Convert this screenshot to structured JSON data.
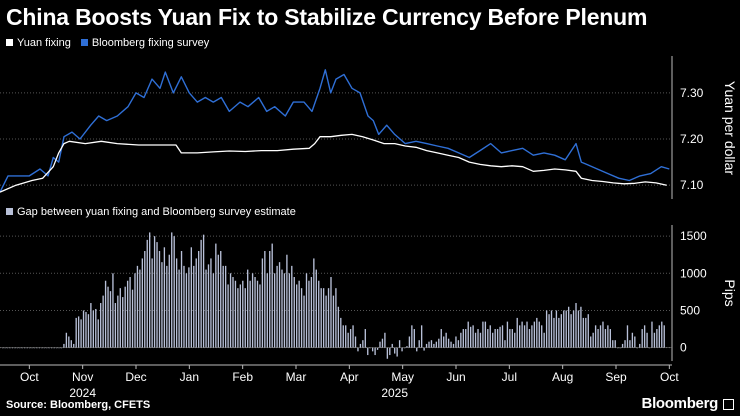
{
  "title": "China Boosts Yuan Fix to Stabilize Currency Before Plenum",
  "legend": {
    "fixing": {
      "label": "Yuan fixing",
      "color": "#ffffff"
    },
    "survey": {
      "label": "Bloomberg fixing survey",
      "color": "#2f6fd6"
    }
  },
  "gap_legend": {
    "label": "Gap between yuan fixing and Bloomberg survey estimate",
    "color": "#b8c0d8"
  },
  "source": "Source: Bloomberg, CFETS",
  "brand": "Bloomberg",
  "chart_data": [
    {
      "type": "line",
      "title": "China Boosts Yuan Fix to Stabilize Currency Before Plenum",
      "ylabel": "Yuan per dollar",
      "ylim": [
        7.07,
        7.38
      ],
      "yticks": [
        "7.30",
        "7.20",
        "7.10"
      ],
      "ytick_values": [
        7.3,
        7.2,
        7.1
      ],
      "xlim": [
        0,
        12.6
      ],
      "month_labels": [
        "Oct",
        "Nov",
        "Dec",
        "Jan",
        "Feb",
        "Mar",
        "Apr",
        "May",
        "Jun",
        "Jul",
        "Aug",
        "Sep",
        "Oct"
      ],
      "year_labels": [
        "2024",
        "2025"
      ],
      "series": [
        {
          "name": "Yuan fixing",
          "points": [
            [
              0,
              7.085
            ],
            [
              0.3,
              7.1
            ],
            [
              0.6,
              7.11
            ],
            [
              0.8,
              7.115
            ],
            [
              1.0,
              7.14
            ],
            [
              1.1,
              7.17
            ],
            [
              1.2,
              7.19
            ],
            [
              1.3,
              7.195
            ],
            [
              1.6,
              7.19
            ],
            [
              1.9,
              7.195
            ],
            [
              2.2,
              7.19
            ],
            [
              2.6,
              7.187
            ],
            [
              3.0,
              7.187
            ],
            [
              3.3,
              7.187
            ],
            [
              3.4,
              7.17
            ],
            [
              3.7,
              7.17
            ],
            [
              4.0,
              7.172
            ],
            [
              4.3,
              7.174
            ],
            [
              4.6,
              7.173
            ],
            [
              4.9,
              7.175
            ],
            [
              5.2,
              7.175
            ],
            [
              5.5,
              7.178
            ],
            [
              5.8,
              7.18
            ],
            [
              5.9,
              7.19
            ],
            [
              6.0,
              7.205
            ],
            [
              6.2,
              7.205
            ],
            [
              6.4,
              7.208
            ],
            [
              6.6,
              7.21
            ],
            [
              6.8,
              7.205
            ],
            [
              7.0,
              7.198
            ],
            [
              7.2,
              7.19
            ],
            [
              7.4,
              7.19
            ],
            [
              7.6,
              7.185
            ],
            [
              7.8,
              7.182
            ],
            [
              8.0,
              7.175
            ],
            [
              8.2,
              7.17
            ],
            [
              8.4,
              7.165
            ],
            [
              8.6,
              7.16
            ],
            [
              8.8,
              7.15
            ],
            [
              9.0,
              7.145
            ],
            [
              9.2,
              7.142
            ],
            [
              9.4,
              7.14
            ],
            [
              9.6,
              7.142
            ],
            [
              9.8,
              7.14
            ],
            [
              10.0,
              7.13
            ],
            [
              10.2,
              7.132
            ],
            [
              10.4,
              7.135
            ],
            [
              10.6,
              7.133
            ],
            [
              10.8,
              7.13
            ],
            [
              10.9,
              7.115
            ],
            [
              11.1,
              7.11
            ],
            [
              11.3,
              7.108
            ],
            [
              11.5,
              7.105
            ],
            [
              11.7,
              7.103
            ],
            [
              11.9,
              7.104
            ],
            [
              12.1,
              7.107
            ],
            [
              12.3,
              7.105
            ],
            [
              12.5,
              7.1
            ]
          ]
        },
        {
          "name": "Bloomberg fixing survey",
          "points": [
            [
              0,
              7.085
            ],
            [
              0.15,
              7.12
            ],
            [
              0.35,
              7.12
            ],
            [
              0.55,
              7.12
            ],
            [
              0.75,
              7.135
            ],
            [
              0.9,
              7.12
            ],
            [
              1.0,
              7.16
            ],
            [
              1.1,
              7.15
            ],
            [
              1.2,
              7.205
            ],
            [
              1.35,
              7.215
            ],
            [
              1.5,
              7.2
            ],
            [
              1.7,
              7.23
            ],
            [
              1.85,
              7.25
            ],
            [
              2.0,
              7.24
            ],
            [
              2.2,
              7.25
            ],
            [
              2.4,
              7.27
            ],
            [
              2.55,
              7.3
            ],
            [
              2.7,
              7.29
            ],
            [
              2.85,
              7.33
            ],
            [
              3.0,
              7.31
            ],
            [
              3.1,
              7.345
            ],
            [
              3.25,
              7.3
            ],
            [
              3.4,
              7.335
            ],
            [
              3.55,
              7.3
            ],
            [
              3.7,
              7.28
            ],
            [
              3.85,
              7.29
            ],
            [
              4.0,
              7.28
            ],
            [
              4.15,
              7.29
            ],
            [
              4.3,
              7.26
            ],
            [
              4.5,
              7.28
            ],
            [
              4.65,
              7.27
            ],
            [
              4.85,
              7.29
            ],
            [
              5.0,
              7.26
            ],
            [
              5.15,
              7.27
            ],
            [
              5.35,
              7.25
            ],
            [
              5.5,
              7.28
            ],
            [
              5.7,
              7.28
            ],
            [
              5.85,
              7.26
            ],
            [
              6.0,
              7.31
            ],
            [
              6.1,
              7.35
            ],
            [
              6.2,
              7.3
            ],
            [
              6.3,
              7.33
            ],
            [
              6.45,
              7.34
            ],
            [
              6.6,
              7.31
            ],
            [
              6.75,
              7.3
            ],
            [
              6.9,
              7.25
            ],
            [
              7.0,
              7.24
            ],
            [
              7.1,
              7.21
            ],
            [
              7.25,
              7.23
            ],
            [
              7.4,
              7.21
            ],
            [
              7.6,
              7.19
            ],
            [
              7.8,
              7.195
            ],
            [
              8.0,
              7.19
            ],
            [
              8.2,
              7.185
            ],
            [
              8.4,
              7.18
            ],
            [
              8.6,
              7.17
            ],
            [
              8.8,
              7.16
            ],
            [
              9.0,
              7.175
            ],
            [
              9.2,
              7.19
            ],
            [
              9.4,
              7.17
            ],
            [
              9.6,
              7.175
            ],
            [
              9.8,
              7.18
            ],
            [
              10.0,
              7.165
            ],
            [
              10.2,
              7.17
            ],
            [
              10.4,
              7.165
            ],
            [
              10.6,
              7.155
            ],
            [
              10.8,
              7.19
            ],
            [
              10.9,
              7.15
            ],
            [
              11.0,
              7.145
            ],
            [
              11.2,
              7.135
            ],
            [
              11.4,
              7.125
            ],
            [
              11.6,
              7.115
            ],
            [
              11.8,
              7.11
            ],
            [
              12.0,
              7.12
            ],
            [
              12.2,
              7.125
            ],
            [
              12.4,
              7.14
            ],
            [
              12.55,
              7.135
            ]
          ]
        }
      ]
    },
    {
      "type": "bar",
      "title": "Gap between yuan fixing and Bloomberg survey estimate",
      "ylabel": "Pips",
      "ylim": [
        -180,
        1650
      ],
      "yticks": [
        "1500",
        "1000",
        "500",
        "0"
      ],
      "ytick_values": [
        1500,
        1000,
        500,
        0
      ],
      "xlim": [
        0,
        12.6
      ],
      "month_labels": [
        "Oct",
        "Nov",
        "Dec",
        "Jan",
        "Feb",
        "Mar",
        "Apr",
        "May",
        "Jun",
        "Jul",
        "Aug",
        "Sep",
        "Oct"
      ],
      "year_labels": [
        "2024",
        "2025"
      ],
      "series": [
        {
          "name": "Gap",
          "values": [
            0,
            0,
            0,
            0,
            0,
            0,
            0,
            0,
            0,
            0,
            0,
            0,
            0,
            0,
            0,
            0,
            0,
            0,
            0,
            0,
            0,
            0,
            0,
            0,
            0,
            50,
            200,
            150,
            100,
            50,
            400,
            420,
            380,
            500,
            480,
            450,
            600,
            500,
            520,
            380,
            600,
            700,
            900,
            820,
            760,
            1000,
            600,
            700,
            800,
            680,
            820,
            900,
            950,
            780,
            1000,
            1100,
            1050,
            1200,
            1300,
            1450,
            1550,
            1200,
            1500,
            1420,
            1300,
            1150,
            1350,
            1100,
            1250,
            1550,
            1500,
            1200,
            1050,
            1300,
            1100,
            1000,
            1080,
            1350,
            1100,
            1200,
            1300,
            1450,
            1520,
            1050,
            1120,
            1200,
            1000,
            1400,
            1250,
            1300,
            1100,
            1100,
            850,
            1000,
            950,
            900,
            800,
            850,
            900,
            800,
            1050,
            900,
            1000,
            950,
            900,
            850,
            1200,
            1300,
            1000,
            1300,
            1400,
            1000,
            1100,
            1150,
            1050,
            1000,
            1250,
            1000,
            1100,
            950,
            850,
            900,
            800,
            700,
            1000,
            900,
            950,
            1200,
            1050,
            900,
            800,
            800,
            700,
            800,
            950,
            700,
            800,
            550,
            400,
            300,
            300,
            200,
            250,
            300,
            150,
            -50,
            50,
            100,
            250,
            -100,
            0,
            -50,
            -100,
            -30,
            80,
            120,
            200,
            -150,
            -100,
            50,
            -80,
            -120,
            100,
            -50,
            0,
            20,
            150,
            300,
            250,
            -50,
            100,
            300,
            -40,
            50,
            80,
            100,
            50,
            80,
            120,
            250,
            150,
            200,
            120,
            80,
            50,
            150,
            100,
            200,
            250,
            250,
            350,
            280,
            300,
            200,
            250,
            200,
            350,
            350,
            250,
            300,
            200,
            250,
            250,
            280,
            300,
            100,
            350,
            250,
            250,
            200,
            400,
            300,
            350,
            300,
            350,
            250,
            300,
            350,
            400,
            350,
            300,
            200,
            500,
            450,
            500,
            400,
            500,
            400,
            450,
            500,
            500,
            550,
            450,
            500,
            600,
            500,
            550,
            400,
            400,
            450,
            150,
            200,
            300,
            250,
            300,
            350,
            250,
            300,
            250,
            100,
            100,
            0,
            0,
            50,
            100,
            300,
            100,
            200,
            150,
            0,
            50,
            250,
            300,
            200,
            0,
            350,
            200,
            250,
            300,
            350,
            300
          ]
        }
      ]
    }
  ]
}
